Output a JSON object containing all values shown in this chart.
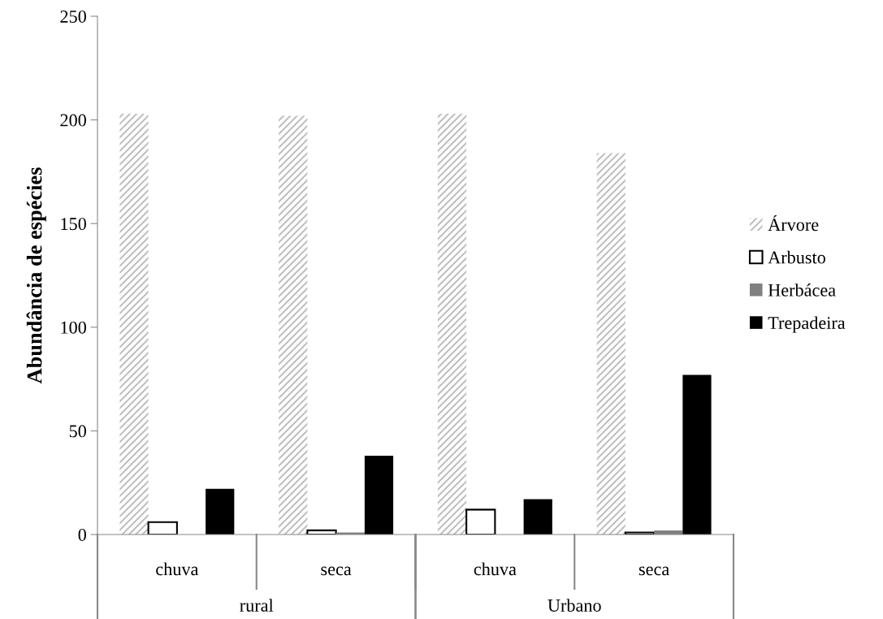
{
  "chart_data": {
    "type": "bar",
    "ylabel": "Abundância de espécies",
    "categories": [
      "chuva",
      "seca",
      "chuva",
      "seca"
    ],
    "annotations": [
      "rural",
      "Urbano"
    ],
    "series": [
      {
        "name": "Árvore",
        "color": "#c0c0c0",
        "values": [
          203,
          202,
          203,
          184
        ]
      },
      {
        "name": "Arbusto",
        "color": "#ffffff",
        "values": [
          6,
          2,
          12,
          1
        ]
      },
      {
        "name": "Herbácea",
        "color": "#808080",
        "values": [
          0,
          1,
          0,
          2
        ]
      },
      {
        "name": "Trepadeira",
        "color": "#000000",
        "values": [
          22,
          38,
          17,
          77
        ]
      }
    ],
    "ylim": [
      0,
      250
    ],
    "yticks": [
      0,
      50,
      100,
      150,
      200,
      250
    ],
    "grid": false,
    "legend": "right"
  }
}
